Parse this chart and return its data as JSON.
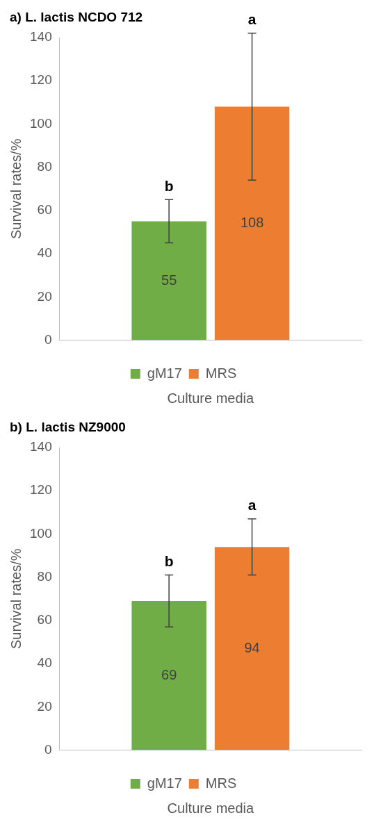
{
  "chart_data": [
    {
      "type": "bar",
      "title": "a) L. lactis NCDO 712",
      "xlabel": "Culture media",
      "ylabel": "Survival rates/%",
      "categories": [
        null
      ],
      "series": [
        {
          "name": "gM17",
          "color": "#70ad47",
          "values": [
            55
          ],
          "errors": [
            10
          ]
        },
        {
          "name": "MRS",
          "color": "#ed7d31",
          "values": [
            108
          ],
          "errors": [
            34
          ]
        }
      ],
      "ylim": [
        0,
        140
      ],
      "yticks": [
        0,
        20,
        40,
        60,
        80,
        100,
        120,
        140
      ],
      "grid": false,
      "legend": "bottom",
      "data_labels": true,
      "annotations": [
        "b",
        "a"
      ]
    },
    {
      "type": "bar",
      "title": "b) L. lactis NZ9000",
      "xlabel": "Culture media",
      "ylabel": "Survival rates/%",
      "categories": [
        null
      ],
      "series": [
        {
          "name": "gM17",
          "color": "#70ad47",
          "values": [
            69
          ],
          "errors": [
            12
          ]
        },
        {
          "name": "MRS",
          "color": "#ed7d31",
          "values": [
            94
          ],
          "errors": [
            13
          ]
        }
      ],
      "ylim": [
        0,
        140
      ],
      "yticks": [
        0,
        20,
        40,
        60,
        80,
        100,
        120,
        140
      ],
      "grid": false,
      "legend": "bottom",
      "data_labels": true,
      "annotations": [
        "b",
        "a"
      ]
    }
  ]
}
